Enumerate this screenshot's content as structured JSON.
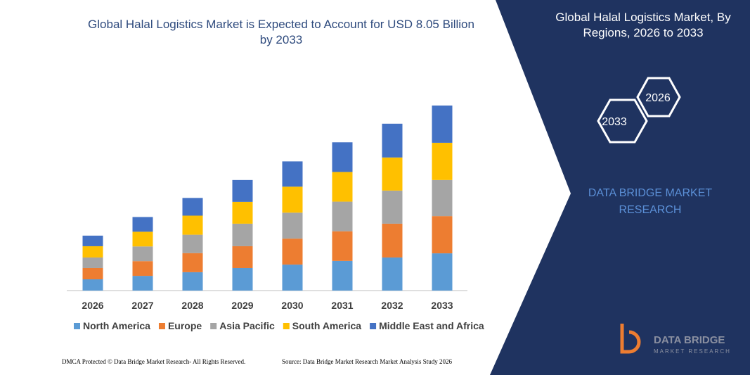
{
  "chart_data": {
    "type": "stacked_bar",
    "title": "Global Halal Logistics Market is Expected to Account for USD 8.05 Billion by 2033",
    "categories": [
      "2026",
      "2027",
      "2028",
      "2029",
      "2030",
      "2031",
      "2032",
      "2033"
    ],
    "series": [
      {
        "name": "North America",
        "color": "#5b9bd5",
        "values": [
          0.49,
          0.64,
          0.8,
          0.98,
          1.13,
          1.29,
          1.44,
          1.62
        ]
      },
      {
        "name": "Europe",
        "color": "#ed7d31",
        "values": [
          0.49,
          0.64,
          0.83,
          0.95,
          1.13,
          1.29,
          1.47,
          1.62
        ]
      },
      {
        "name": "Asia Pacific",
        "color": "#a5a5a5",
        "values": [
          0.46,
          0.64,
          0.8,
          0.98,
          1.13,
          1.29,
          1.44,
          1.57
        ]
      },
      {
        "name": "South America",
        "color": "#ffc000",
        "values": [
          0.49,
          0.64,
          0.83,
          0.95,
          1.13,
          1.29,
          1.44,
          1.62
        ]
      },
      {
        "name": "Middle East and Africa",
        "color": "#4472c4",
        "values": [
          0.46,
          0.64,
          0.77,
          0.95,
          1.1,
          1.29,
          1.47,
          1.62
        ]
      }
    ],
    "legend": "bottom"
  },
  "panel": {
    "title": "Global Halal Logistics Market, By Regions, 2026 to 2033",
    "hexagons": [
      "2026",
      "2033"
    ],
    "brand": "DATA BRIDGE MARKET RESEARCH"
  },
  "logo": {
    "name": "DATA BRIDGE",
    "tagline": "MARKET RESEARCH"
  },
  "footer": {
    "left": "DMCA Protected © Data Bridge Market Research- All Rights Reserved.",
    "right": "Source: Data Bridge Market Research  Market Analysis Study 2026"
  }
}
